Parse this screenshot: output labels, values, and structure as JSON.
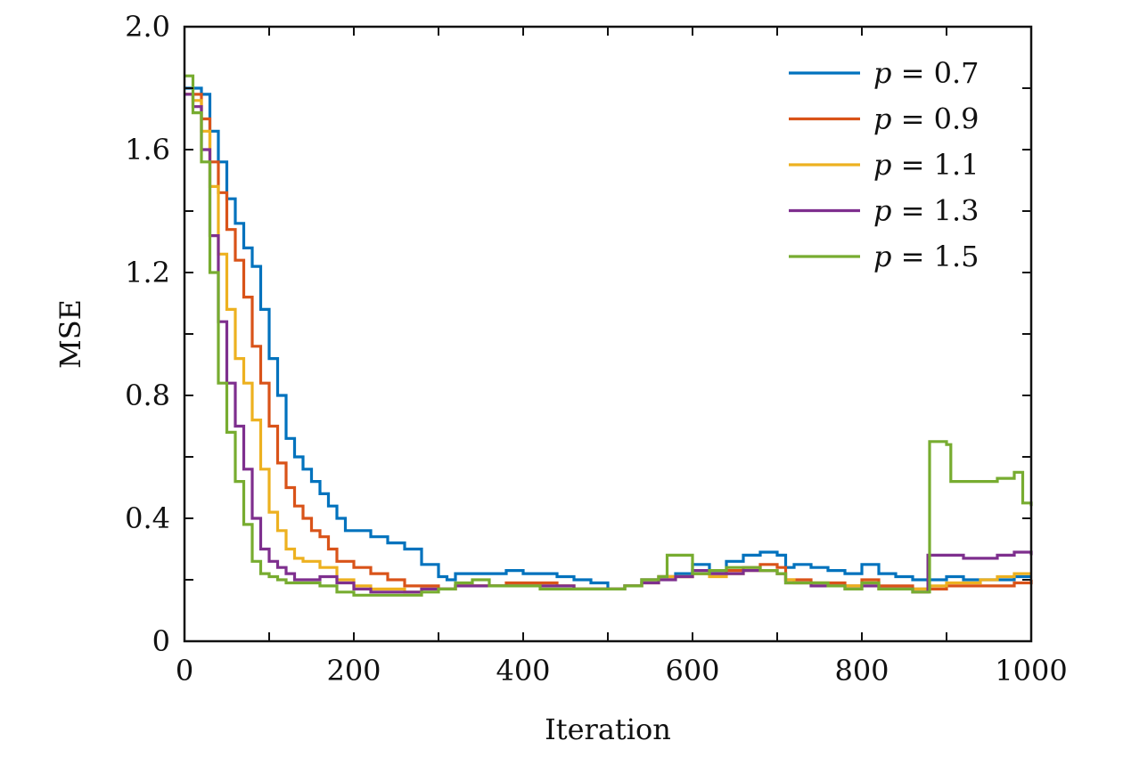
{
  "chart_data": {
    "type": "line",
    "xlabel": "Iteration",
    "ylabel": "MSE",
    "xlim": [
      0,
      1000
    ],
    "ylim": [
      0,
      2.0
    ],
    "x_ticks": [
      0,
      200,
      400,
      600,
      800,
      1000
    ],
    "x_tick_labels": [
      "0",
      "200",
      "400",
      "600",
      "800",
      "1000"
    ],
    "y_ticks": [
      0,
      0.4,
      0.8,
      1.2,
      1.6,
      2.0
    ],
    "y_tick_labels": [
      "0",
      "0.4",
      "0.8",
      "1.2",
      "1.6",
      "2.0"
    ],
    "grid": false,
    "legend_position": "top-right",
    "series": [
      {
        "name": "p = 0.7",
        "legend_var": "p",
        "legend_value": "0.7",
        "color": "#0072BD",
        "points": [
          [
            0,
            1.8
          ],
          [
            10,
            1.8
          ],
          [
            20,
            1.78
          ],
          [
            30,
            1.66
          ],
          [
            40,
            1.56
          ],
          [
            50,
            1.44
          ],
          [
            60,
            1.36
          ],
          [
            70,
            1.28
          ],
          [
            80,
            1.22
          ],
          [
            90,
            1.08
          ],
          [
            100,
            0.92
          ],
          [
            110,
            0.8
          ],
          [
            120,
            0.66
          ],
          [
            130,
            0.6
          ],
          [
            140,
            0.56
          ],
          [
            150,
            0.52
          ],
          [
            160,
            0.48
          ],
          [
            170,
            0.44
          ],
          [
            180,
            0.4
          ],
          [
            190,
            0.36
          ],
          [
            200,
            0.36
          ],
          [
            220,
            0.34
          ],
          [
            240,
            0.32
          ],
          [
            260,
            0.3
          ],
          [
            280,
            0.25
          ],
          [
            300,
            0.21
          ],
          [
            310,
            0.2
          ],
          [
            320,
            0.22
          ],
          [
            340,
            0.22
          ],
          [
            360,
            0.22
          ],
          [
            380,
            0.23
          ],
          [
            400,
            0.22
          ],
          [
            420,
            0.22
          ],
          [
            440,
            0.21
          ],
          [
            460,
            0.2
          ],
          [
            480,
            0.19
          ],
          [
            500,
            0.17
          ],
          [
            520,
            0.18
          ],
          [
            540,
            0.2
          ],
          [
            560,
            0.21
          ],
          [
            580,
            0.22
          ],
          [
            600,
            0.25
          ],
          [
            620,
            0.23
          ],
          [
            640,
            0.26
          ],
          [
            660,
            0.28
          ],
          [
            680,
            0.29
          ],
          [
            700,
            0.28
          ],
          [
            710,
            0.24
          ],
          [
            720,
            0.25
          ],
          [
            740,
            0.24
          ],
          [
            760,
            0.23
          ],
          [
            780,
            0.22
          ],
          [
            800,
            0.25
          ],
          [
            820,
            0.22
          ],
          [
            840,
            0.21
          ],
          [
            860,
            0.2
          ],
          [
            875,
            0.2
          ],
          [
            880,
            0.2
          ],
          [
            900,
            0.21
          ],
          [
            920,
            0.2
          ],
          [
            940,
            0.2
          ],
          [
            960,
            0.2
          ],
          [
            980,
            0.21
          ],
          [
            1000,
            0.21
          ]
        ]
      },
      {
        "name": "p = 0.9",
        "legend_var": "p",
        "legend_value": "0.9",
        "color": "#D95319",
        "points": [
          [
            0,
            1.78
          ],
          [
            10,
            1.78
          ],
          [
            20,
            1.7
          ],
          [
            30,
            1.56
          ],
          [
            40,
            1.46
          ],
          [
            50,
            1.34
          ],
          [
            60,
            1.24
          ],
          [
            70,
            1.12
          ],
          [
            80,
            0.96
          ],
          [
            90,
            0.84
          ],
          [
            100,
            0.7
          ],
          [
            110,
            0.58
          ],
          [
            120,
            0.5
          ],
          [
            130,
            0.44
          ],
          [
            140,
            0.4
          ],
          [
            150,
            0.36
          ],
          [
            160,
            0.34
          ],
          [
            170,
            0.3
          ],
          [
            180,
            0.26
          ],
          [
            200,
            0.24
          ],
          [
            220,
            0.22
          ],
          [
            240,
            0.2
          ],
          [
            260,
            0.18
          ],
          [
            280,
            0.18
          ],
          [
            300,
            0.17
          ],
          [
            320,
            0.18
          ],
          [
            340,
            0.18
          ],
          [
            360,
            0.18
          ],
          [
            380,
            0.19
          ],
          [
            400,
            0.19
          ],
          [
            420,
            0.19
          ],
          [
            440,
            0.18
          ],
          [
            460,
            0.17
          ],
          [
            480,
            0.17
          ],
          [
            500,
            0.17
          ],
          [
            520,
            0.18
          ],
          [
            540,
            0.2
          ],
          [
            560,
            0.21
          ],
          [
            580,
            0.21
          ],
          [
            600,
            0.22
          ],
          [
            620,
            0.22
          ],
          [
            640,
            0.23
          ],
          [
            660,
            0.24
          ],
          [
            680,
            0.25
          ],
          [
            700,
            0.24
          ],
          [
            710,
            0.2
          ],
          [
            720,
            0.2
          ],
          [
            740,
            0.19
          ],
          [
            760,
            0.19
          ],
          [
            780,
            0.18
          ],
          [
            800,
            0.2
          ],
          [
            820,
            0.18
          ],
          [
            840,
            0.18
          ],
          [
            860,
            0.17
          ],
          [
            875,
            0.17
          ],
          [
            880,
            0.17
          ],
          [
            900,
            0.18
          ],
          [
            920,
            0.18
          ],
          [
            940,
            0.18
          ],
          [
            960,
            0.18
          ],
          [
            980,
            0.19
          ],
          [
            1000,
            0.2
          ]
        ]
      },
      {
        "name": "p = 1.1",
        "legend_var": "p",
        "legend_value": "1.1",
        "color": "#EDB120",
        "points": [
          [
            0,
            1.78
          ],
          [
            10,
            1.76
          ],
          [
            20,
            1.66
          ],
          [
            30,
            1.48
          ],
          [
            40,
            1.26
          ],
          [
            50,
            1.08
          ],
          [
            60,
            0.92
          ],
          [
            70,
            0.84
          ],
          [
            80,
            0.72
          ],
          [
            90,
            0.56
          ],
          [
            100,
            0.42
          ],
          [
            110,
            0.36
          ],
          [
            120,
            0.3
          ],
          [
            130,
            0.27
          ],
          [
            140,
            0.26
          ],
          [
            160,
            0.24
          ],
          [
            180,
            0.2
          ],
          [
            200,
            0.18
          ],
          [
            220,
            0.17
          ],
          [
            240,
            0.17
          ],
          [
            260,
            0.16
          ],
          [
            280,
            0.17
          ],
          [
            300,
            0.17
          ],
          [
            320,
            0.18
          ],
          [
            340,
            0.18
          ],
          [
            360,
            0.18
          ],
          [
            380,
            0.18
          ],
          [
            400,
            0.18
          ],
          [
            420,
            0.18
          ],
          [
            440,
            0.18
          ],
          [
            460,
            0.17
          ],
          [
            480,
            0.17
          ],
          [
            500,
            0.17
          ],
          [
            520,
            0.18
          ],
          [
            540,
            0.19
          ],
          [
            560,
            0.21
          ],
          [
            580,
            0.21
          ],
          [
            600,
            0.22
          ],
          [
            620,
            0.21
          ],
          [
            640,
            0.22
          ],
          [
            660,
            0.23
          ],
          [
            680,
            0.23
          ],
          [
            700,
            0.22
          ],
          [
            710,
            0.2
          ],
          [
            720,
            0.19
          ],
          [
            740,
            0.19
          ],
          [
            760,
            0.18
          ],
          [
            780,
            0.18
          ],
          [
            800,
            0.19
          ],
          [
            820,
            0.17
          ],
          [
            840,
            0.17
          ],
          [
            860,
            0.17
          ],
          [
            875,
            0.17
          ],
          [
            880,
            0.18
          ],
          [
            900,
            0.19
          ],
          [
            920,
            0.19
          ],
          [
            940,
            0.2
          ],
          [
            960,
            0.21
          ],
          [
            980,
            0.22
          ],
          [
            1000,
            0.22
          ]
        ]
      },
      {
        "name": "p = 1.3",
        "legend_var": "p",
        "legend_value": "1.3",
        "color": "#7E2F8E",
        "points": [
          [
            0,
            1.78
          ],
          [
            10,
            1.74
          ],
          [
            20,
            1.6
          ],
          [
            30,
            1.32
          ],
          [
            40,
            1.04
          ],
          [
            50,
            0.84
          ],
          [
            60,
            0.7
          ],
          [
            70,
            0.56
          ],
          [
            80,
            0.4
          ],
          [
            90,
            0.3
          ],
          [
            100,
            0.26
          ],
          [
            110,
            0.24
          ],
          [
            120,
            0.22
          ],
          [
            130,
            0.2
          ],
          [
            140,
            0.2
          ],
          [
            160,
            0.21
          ],
          [
            180,
            0.19
          ],
          [
            200,
            0.17
          ],
          [
            220,
            0.16
          ],
          [
            240,
            0.16
          ],
          [
            260,
            0.16
          ],
          [
            280,
            0.17
          ],
          [
            300,
            0.17
          ],
          [
            320,
            0.18
          ],
          [
            340,
            0.18
          ],
          [
            360,
            0.18
          ],
          [
            380,
            0.18
          ],
          [
            400,
            0.18
          ],
          [
            420,
            0.18
          ],
          [
            440,
            0.18
          ],
          [
            460,
            0.17
          ],
          [
            480,
            0.17
          ],
          [
            500,
            0.17
          ],
          [
            520,
            0.18
          ],
          [
            540,
            0.19
          ],
          [
            560,
            0.2
          ],
          [
            580,
            0.21
          ],
          [
            600,
            0.23
          ],
          [
            620,
            0.22
          ],
          [
            640,
            0.22
          ],
          [
            660,
            0.23
          ],
          [
            680,
            0.23
          ],
          [
            700,
            0.22
          ],
          [
            710,
            0.19
          ],
          [
            720,
            0.19
          ],
          [
            740,
            0.18
          ],
          [
            760,
            0.18
          ],
          [
            780,
            0.17
          ],
          [
            800,
            0.18
          ],
          [
            820,
            0.17
          ],
          [
            840,
            0.17
          ],
          [
            860,
            0.16
          ],
          [
            875,
            0.16
          ],
          [
            878,
            0.28
          ],
          [
            900,
            0.28
          ],
          [
            920,
            0.27
          ],
          [
            940,
            0.27
          ],
          [
            960,
            0.28
          ],
          [
            980,
            0.29
          ],
          [
            1000,
            0.28
          ]
        ]
      },
      {
        "name": "p = 1.5",
        "legend_var": "p",
        "legend_value": "1.5",
        "color": "#77AC30",
        "points": [
          [
            0,
            1.84
          ],
          [
            10,
            1.72
          ],
          [
            20,
            1.56
          ],
          [
            30,
            1.2
          ],
          [
            40,
            0.84
          ],
          [
            50,
            0.68
          ],
          [
            60,
            0.52
          ],
          [
            70,
            0.38
          ],
          [
            80,
            0.26
          ],
          [
            90,
            0.22
          ],
          [
            100,
            0.21
          ],
          [
            110,
            0.2
          ],
          [
            120,
            0.19
          ],
          [
            140,
            0.19
          ],
          [
            160,
            0.18
          ],
          [
            180,
            0.16
          ],
          [
            200,
            0.15
          ],
          [
            220,
            0.15
          ],
          [
            240,
            0.15
          ],
          [
            260,
            0.15
          ],
          [
            280,
            0.16
          ],
          [
            300,
            0.17
          ],
          [
            320,
            0.19
          ],
          [
            340,
            0.2
          ],
          [
            360,
            0.18
          ],
          [
            380,
            0.18
          ],
          [
            400,
            0.18
          ],
          [
            420,
            0.17
          ],
          [
            440,
            0.17
          ],
          [
            460,
            0.17
          ],
          [
            480,
            0.17
          ],
          [
            500,
            0.17
          ],
          [
            520,
            0.18
          ],
          [
            540,
            0.2
          ],
          [
            560,
            0.21
          ],
          [
            570,
            0.28
          ],
          [
            590,
            0.28
          ],
          [
            600,
            0.22
          ],
          [
            620,
            0.23
          ],
          [
            640,
            0.24
          ],
          [
            660,
            0.24
          ],
          [
            680,
            0.23
          ],
          [
            700,
            0.22
          ],
          [
            710,
            0.19
          ],
          [
            720,
            0.19
          ],
          [
            740,
            0.19
          ],
          [
            760,
            0.18
          ],
          [
            780,
            0.17
          ],
          [
            800,
            0.19
          ],
          [
            820,
            0.17
          ],
          [
            840,
            0.17
          ],
          [
            860,
            0.16
          ],
          [
            875,
            0.16
          ],
          [
            880,
            0.65
          ],
          [
            900,
            0.64
          ],
          [
            905,
            0.52
          ],
          [
            920,
            0.52
          ],
          [
            940,
            0.52
          ],
          [
            960,
            0.53
          ],
          [
            980,
            0.55
          ],
          [
            990,
            0.45
          ],
          [
            1000,
            0.44
          ]
        ]
      }
    ]
  }
}
